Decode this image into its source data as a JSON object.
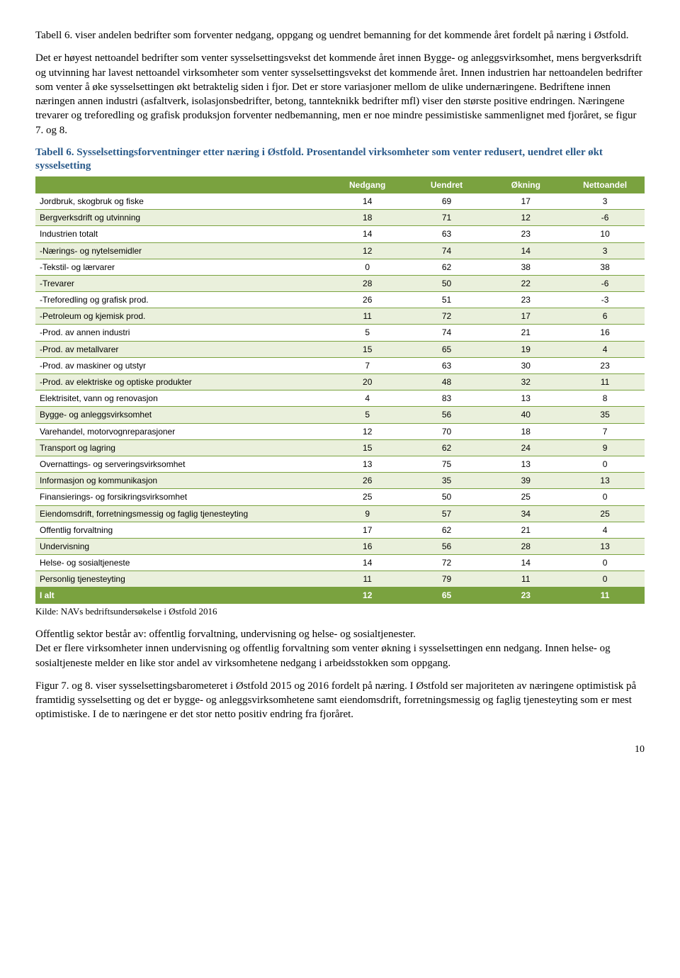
{
  "intro": "Tabell 6. viser andelen bedrifter som forventer nedgang, oppgang og uendret bemanning for det kommende året fordelt på næring i Østfold.",
  "para1": "Det er høyest nettoandel bedrifter som venter sysselsettingsvekst det kommende året innen Bygge- og anleggsvirksomhet, mens bergverksdrift og utvinning har lavest nettoandel virksomheter som venter sysselsettingsvekst det kommende året. Innen industrien har nettoandelen bedrifter som venter å øke sysselsettingen økt betraktelig siden i fjor. Det er store variasjoner mellom de ulike undernæringene. Bedriftene innen næringen annen industri (asfaltverk, isolasjonsbedrifter, betong, tannteknikk bedrifter mfl) viser den største positive endringen. Næringene trevarer og treforedling og grafisk produksjon forventer nedbemanning, men er noe mindre pessimistiske sammenlignet med fjoråret, se figur 7. og 8.",
  "table_caption": "Tabell 6. Sysselsettingsforventninger etter næring i Østfold. Prosentandel virksomheter som venter redusert, uendret eller økt sysselsetting",
  "columns": [
    "",
    "Nedgang",
    "Uendret",
    "Økning",
    "Nettoandel"
  ],
  "rows": [
    [
      "Jordbruk, skogbruk og fiske",
      14,
      69,
      17,
      3
    ],
    [
      "Bergverksdrift og utvinning",
      18,
      71,
      12,
      -6
    ],
    [
      "Industrien totalt",
      14,
      63,
      23,
      10
    ],
    [
      "-Nærings- og nytelsemidler",
      12,
      74,
      14,
      3
    ],
    [
      "-Tekstil- og lærvarer",
      0,
      62,
      38,
      38
    ],
    [
      "-Trevarer",
      28,
      50,
      22,
      -6
    ],
    [
      "-Treforedling og grafisk prod.",
      26,
      51,
      23,
      -3
    ],
    [
      "-Petroleum og kjemisk prod.",
      11,
      72,
      17,
      6
    ],
    [
      "-Prod. av annen industri",
      5,
      74,
      21,
      16
    ],
    [
      "-Prod. av metallvarer",
      15,
      65,
      19,
      4
    ],
    [
      "-Prod. av maskiner og utstyr",
      7,
      63,
      30,
      23
    ],
    [
      "-Prod. av elektriske og optiske produkter",
      20,
      48,
      32,
      11
    ],
    [
      "Elektrisitet, vann og renovasjon",
      4,
      83,
      13,
      8
    ],
    [
      "Bygge- og anleggsvirksomhet",
      5,
      56,
      40,
      35
    ],
    [
      "Varehandel, motorvognreparasjoner",
      12,
      70,
      18,
      7
    ],
    [
      "Transport og lagring",
      15,
      62,
      24,
      9
    ],
    [
      "Overnattings- og serveringsvirksomhet",
      13,
      75,
      13,
      0
    ],
    [
      "Informasjon og kommunikasjon",
      26,
      35,
      39,
      13
    ],
    [
      "Finansierings- og forsikringsvirksomhet",
      25,
      50,
      25,
      0
    ],
    [
      "Eiendomsdrift, forretningsmessig og faglig tjenesteyting",
      9,
      57,
      34,
      25
    ],
    [
      "Offentlig forvaltning",
      17,
      62,
      21,
      4
    ],
    [
      "Undervisning",
      16,
      56,
      28,
      13
    ],
    [
      "Helse- og sosialtjeneste",
      14,
      72,
      14,
      0
    ],
    [
      "Personlig tjenesteyting",
      11,
      79,
      11,
      0
    ]
  ],
  "total_row": [
    "I alt",
    12,
    65,
    23,
    11
  ],
  "kilde": "Kilde: NAVs bedriftsundersøkelse i Østfold 2016",
  "para2": "Offentlig sektor består av: offentlig forvaltning, undervisning og helse- og sosialtjenester.",
  "para3": "Det er flere virksomheter innen undervisning og offentlig forvaltning som venter økning i sysselsettingen enn nedgang. Innen helse- og sosialtjeneste melder en like stor andel av virksomhetene nedgang i arbeidsstokken som oppgang.",
  "para4": "Figur 7. og 8. viser sysselsettingsbarometeret i Østfold 2015 og 2016 fordelt på næring. I Østfold ser majoriteten av næringene optimistisk på framtidig sysselsetting og det er bygge- og anleggsvirksomhetene samt eiendomsdrift, forretningsmessig og faglig tjenesteyting som er mest optimistiske. I de to næringene er det stor netto positiv endring fra fjoråret.",
  "page_number": "10",
  "table_style": {
    "header_bg": "#7aa23f",
    "header_fg": "#ffffff",
    "alt_bg": "#eaf0dc",
    "border_color": "#7aa23f",
    "caption_color": "#2a5a8a",
    "font_family": "Arial",
    "header_fontsize": 12,
    "cell_fontsize": 12
  }
}
